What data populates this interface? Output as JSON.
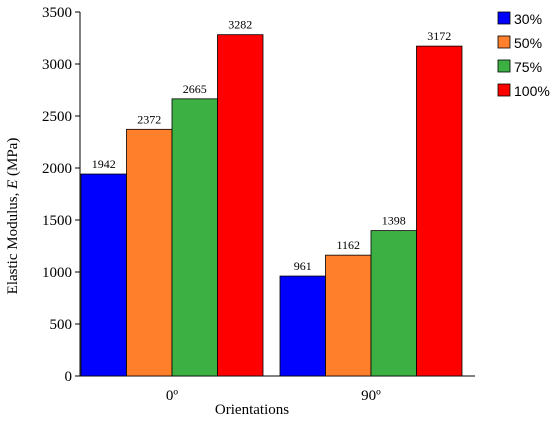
{
  "chart_data": {
    "type": "bar",
    "categories": [
      "0º",
      "90º"
    ],
    "series": [
      {
        "name": "30%",
        "values": [
          1942,
          961
        ],
        "color": "#0000ff"
      },
      {
        "name": "50%",
        "values": [
          2372,
          1162
        ],
        "color": "#ff7f2a"
      },
      {
        "name": "75%",
        "values": [
          2665,
          1398
        ],
        "color": "#3cb043"
      },
      {
        "name": "100%",
        "values": [
          3282,
          3172
        ],
        "color": "#ff0000"
      }
    ],
    "data_labels": [
      [
        "1942",
        "2372",
        "2665",
        "3282"
      ],
      [
        "961",
        "1162",
        "1398",
        "3172"
      ]
    ],
    "xlabel": "Orientations",
    "ylabel_prefix": "Elastic Modulus, ",
    "ylabel_symbol": "E",
    "ylabel_unit": " (MPa)",
    "ylim": [
      0,
      3500
    ],
    "yticks": [
      0,
      500,
      1000,
      1500,
      2000,
      2500,
      3000,
      3500
    ],
    "legend_position": "top-right",
    "grid": false
  }
}
